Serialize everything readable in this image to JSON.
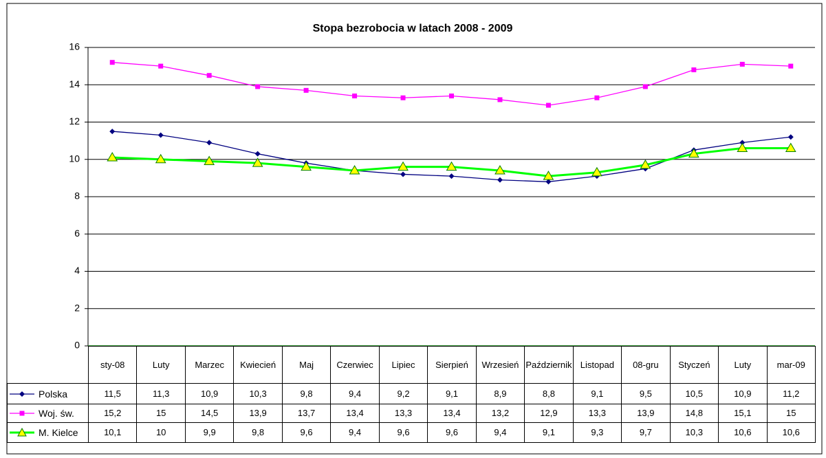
{
  "chart_data": {
    "type": "line",
    "title": "Stopa bezrobocia w latach 2008 - 2009",
    "categories": [
      "sty-08",
      "Luty",
      "Marzec",
      "Kwiecień",
      "Maj",
      "Czerwiec",
      "Lipiec",
      "Sierpień",
      "Wrzesień",
      "Październik",
      "Listopad",
      "08-gru",
      "Styczeń",
      "Luty",
      "mar-09"
    ],
    "series": [
      {
        "name": "Polska",
        "color": "#000080",
        "marker": "diamond",
        "values": [
          11.5,
          11.3,
          10.9,
          10.3,
          9.8,
          9.4,
          9.2,
          9.1,
          8.9,
          8.8,
          9.1,
          9.5,
          10.5,
          10.9,
          11.2
        ],
        "value_labels": [
          "11,5",
          "11,3",
          "10,9",
          "10,3",
          "9,8",
          "9,4",
          "9,2",
          "9,1",
          "8,9",
          "8,8",
          "9,1",
          "9,5",
          "10,5",
          "10,9",
          "11,2"
        ]
      },
      {
        "name": "Woj. św.",
        "color": "#ff00ff",
        "marker": "square",
        "values": [
          15.2,
          15,
          14.5,
          13.9,
          13.7,
          13.4,
          13.3,
          13.4,
          13.2,
          12.9,
          13.3,
          13.9,
          14.8,
          15.1,
          15
        ],
        "value_labels": [
          "15,2",
          "15",
          "14,5",
          "13,9",
          "13,7",
          "13,4",
          "13,3",
          "13,4",
          "13,2",
          "12,9",
          "13,3",
          "13,9",
          "14,8",
          "15,1",
          "15"
        ]
      },
      {
        "name": "M. Kielce",
        "color": "#00ff00",
        "marker": "triangle",
        "values": [
          10.1,
          10,
          9.9,
          9.8,
          9.6,
          9.4,
          9.6,
          9.6,
          9.4,
          9.1,
          9.3,
          9.7,
          10.3,
          10.6,
          10.6
        ],
        "value_labels": [
          "10,1",
          "10",
          "9,9",
          "9,8",
          "9,6",
          "9,4",
          "9,6",
          "9,6",
          "9,4",
          "9,1",
          "9,3",
          "9,7",
          "10,3",
          "10,6",
          "10,6"
        ]
      }
    ],
    "ylim": [
      0,
      16
    ],
    "yticks": [
      0,
      2,
      4,
      6,
      8,
      10,
      12,
      14,
      16
    ],
    "grid": true
  }
}
